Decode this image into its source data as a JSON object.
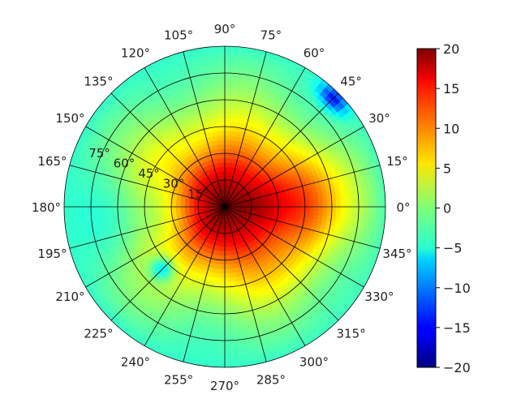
{
  "chart_data": {
    "type": "heatmap",
    "projection": "polar",
    "title": "",
    "theta_ticks": [
      "0°",
      "15°",
      "30°",
      "45°",
      "60°",
      "75°",
      "90°",
      "105°",
      "120°",
      "135°",
      "150°",
      "165°",
      "180°",
      "195°",
      "210°",
      "225°",
      "240°",
      "255°",
      "270°",
      "285°",
      "300°",
      "315°",
      "330°",
      "345°"
    ],
    "r_ticks": [
      "15°",
      "30°",
      "45°",
      "60°",
      "75°"
    ],
    "r_range": [
      0,
      90
    ],
    "colorbar": {
      "colormap": "jet",
      "range": [
        -20,
        20
      ],
      "ticks": [
        "20",
        "15",
        "10",
        "5",
        "0",
        "−5",
        "−10",
        "−15",
        "−20"
      ]
    },
    "grid": true,
    "field_description_values": {
      "center_max": 20,
      "main_lobe_direction_deg": 0,
      "edge_value": -5,
      "min_spot": {
        "theta_deg": 45,
        "r_deg": 86,
        "value": -18
      }
    }
  }
}
